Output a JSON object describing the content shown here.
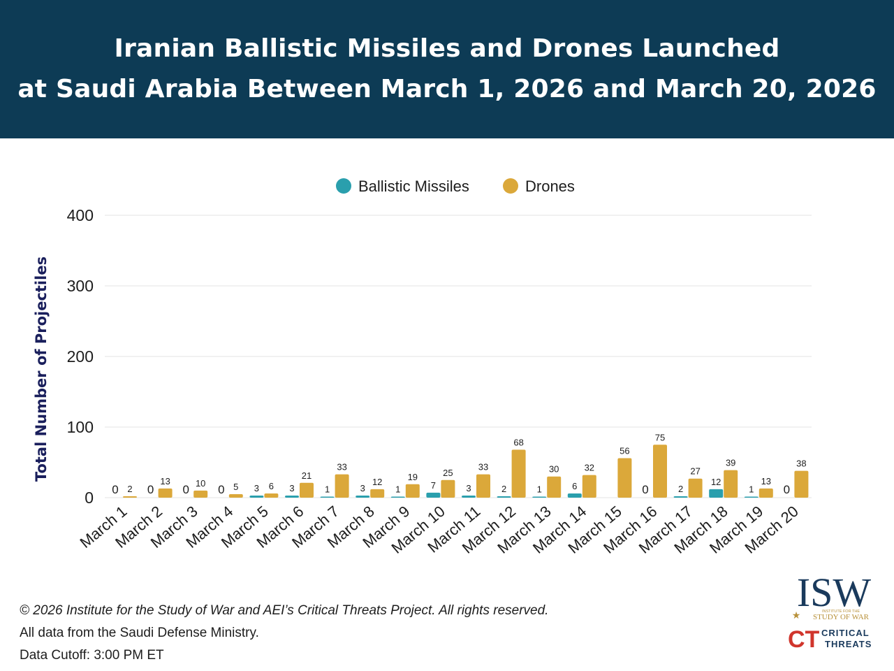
{
  "header": {
    "title_line1": "Iranian Ballistic Missiles and Drones Launched",
    "title_line2": "at Saudi Arabia Between March 1, 2026 and March 20, 2026"
  },
  "chart_data": {
    "type": "bar",
    "title": "Iranian Ballistic Missiles and Drones Launched at Saudi Arabia Between March 1, 2026 and March 20, 2026",
    "xlabel": "",
    "ylabel": "Total Number of Projectiles",
    "ylim": [
      0,
      400
    ],
    "yticks": [
      0,
      100,
      200,
      300,
      400
    ],
    "grid": true,
    "legend_position": "top-center",
    "categories": [
      "March 1",
      "March 2",
      "March 3",
      "March 4",
      "March 5",
      "March 6",
      "March 7",
      "March 8",
      "March 9",
      "March 10",
      "March 11",
      "March 12",
      "March 13",
      "March 14",
      "March 15",
      "March 16",
      "March 17",
      "March 18",
      "March 19",
      "March 20"
    ],
    "series": [
      {
        "name": "Ballistic Missiles",
        "color": "#2a9fad",
        "values": [
          0,
          0,
          0,
          0,
          3,
          3,
          1,
          3,
          1,
          7,
          3,
          2,
          1,
          6,
          null,
          0,
          2,
          12,
          1,
          0
        ]
      },
      {
        "name": "Drones",
        "color": "#dba83a",
        "values": [
          2,
          13,
          10,
          5,
          6,
          21,
          33,
          12,
          19,
          25,
          33,
          68,
          30,
          32,
          56,
          75,
          27,
          39,
          13,
          38
        ]
      }
    ]
  },
  "footer": {
    "copyright": "© 2026 Institute for the Study of War and AEI’s Critical Threats Project. All rights reserved.",
    "source": "All data from the Saudi Defense Ministry.",
    "cutoff": "Data Cutoff: 3:00 PM ET"
  },
  "logos": {
    "isw": "ISW",
    "isw_sub1": "INSTITUTE FOR THE",
    "isw_sub2": "STUDY OF WAR",
    "ct_mark": "CT",
    "ct_word1": "CRITICAL",
    "ct_word2": "THREATS"
  },
  "colors": {
    "header_bg": "#0d3b55",
    "missiles": "#2a9fad",
    "drones": "#dba83a",
    "axis_text": "#1d1d1d",
    "ylabel": "#1a1f5c"
  }
}
